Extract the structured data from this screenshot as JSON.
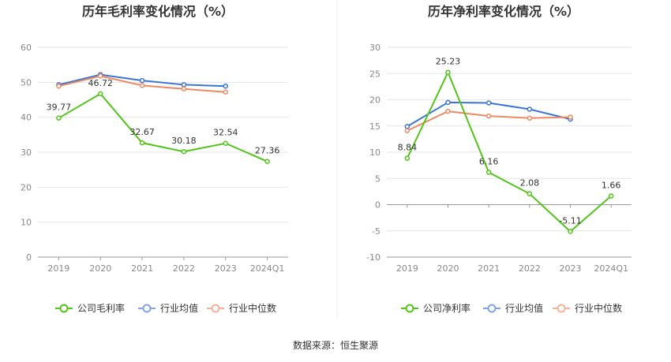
{
  "chart_data": [
    {
      "type": "line",
      "title": "历年毛利率变化情况（%）",
      "categories": [
        "2019",
        "2020",
        "2021",
        "2022",
        "2023",
        "2024Q1"
      ],
      "ylim": [
        0,
        60
      ],
      "yticks": [
        0,
        10,
        20,
        30,
        40,
        50,
        60
      ],
      "grid": true,
      "legend_position": "bottom",
      "series": [
        {
          "name": "公司毛利率",
          "color": "#52c41a",
          "values": [
            39.77,
            46.72,
            32.67,
            30.18,
            32.54,
            27.36
          ],
          "labeled": true
        },
        {
          "name": "行业均值",
          "color": "#3a75d6",
          "values": [
            49.3,
            52.2,
            50.5,
            49.3,
            48.9,
            null
          ],
          "labeled": false
        },
        {
          "name": "行业中位数",
          "color": "#f08860",
          "values": [
            48.9,
            51.8,
            49.1,
            48.1,
            47.2,
            null
          ],
          "labeled": false
        }
      ],
      "data_labels": [
        "39.77",
        "46.72",
        "32.67",
        "30.18",
        "32.54",
        "27.36"
      ]
    },
    {
      "type": "line",
      "title": "历年净利率变化情况（%）",
      "categories": [
        "2019",
        "2020",
        "2021",
        "2022",
        "2023",
        "2024Q1"
      ],
      "ylim": [
        -10,
        30
      ],
      "yticks": [
        -10,
        -5,
        0,
        5,
        10,
        15,
        20,
        25,
        30
      ],
      "grid": true,
      "legend_position": "bottom",
      "series": [
        {
          "name": "公司净利率",
          "color": "#52c41a",
          "values": [
            8.84,
            25.23,
            6.16,
            2.08,
            -5.11,
            1.66
          ],
          "labeled": true
        },
        {
          "name": "行业均值",
          "color": "#3a75d6",
          "values": [
            14.9,
            19.5,
            19.4,
            18.2,
            16.3,
            null
          ],
          "labeled": false
        },
        {
          "name": "行业中位数",
          "color": "#f08860",
          "values": [
            14.1,
            17.8,
            16.9,
            16.5,
            16.7,
            null
          ],
          "labeled": false
        }
      ],
      "data_labels": [
        "8.84",
        "25.23",
        "6.16",
        "2.08",
        "-5.11",
        "1.66"
      ]
    }
  ],
  "footer": {
    "source": "数据来源：恒生聚源"
  }
}
